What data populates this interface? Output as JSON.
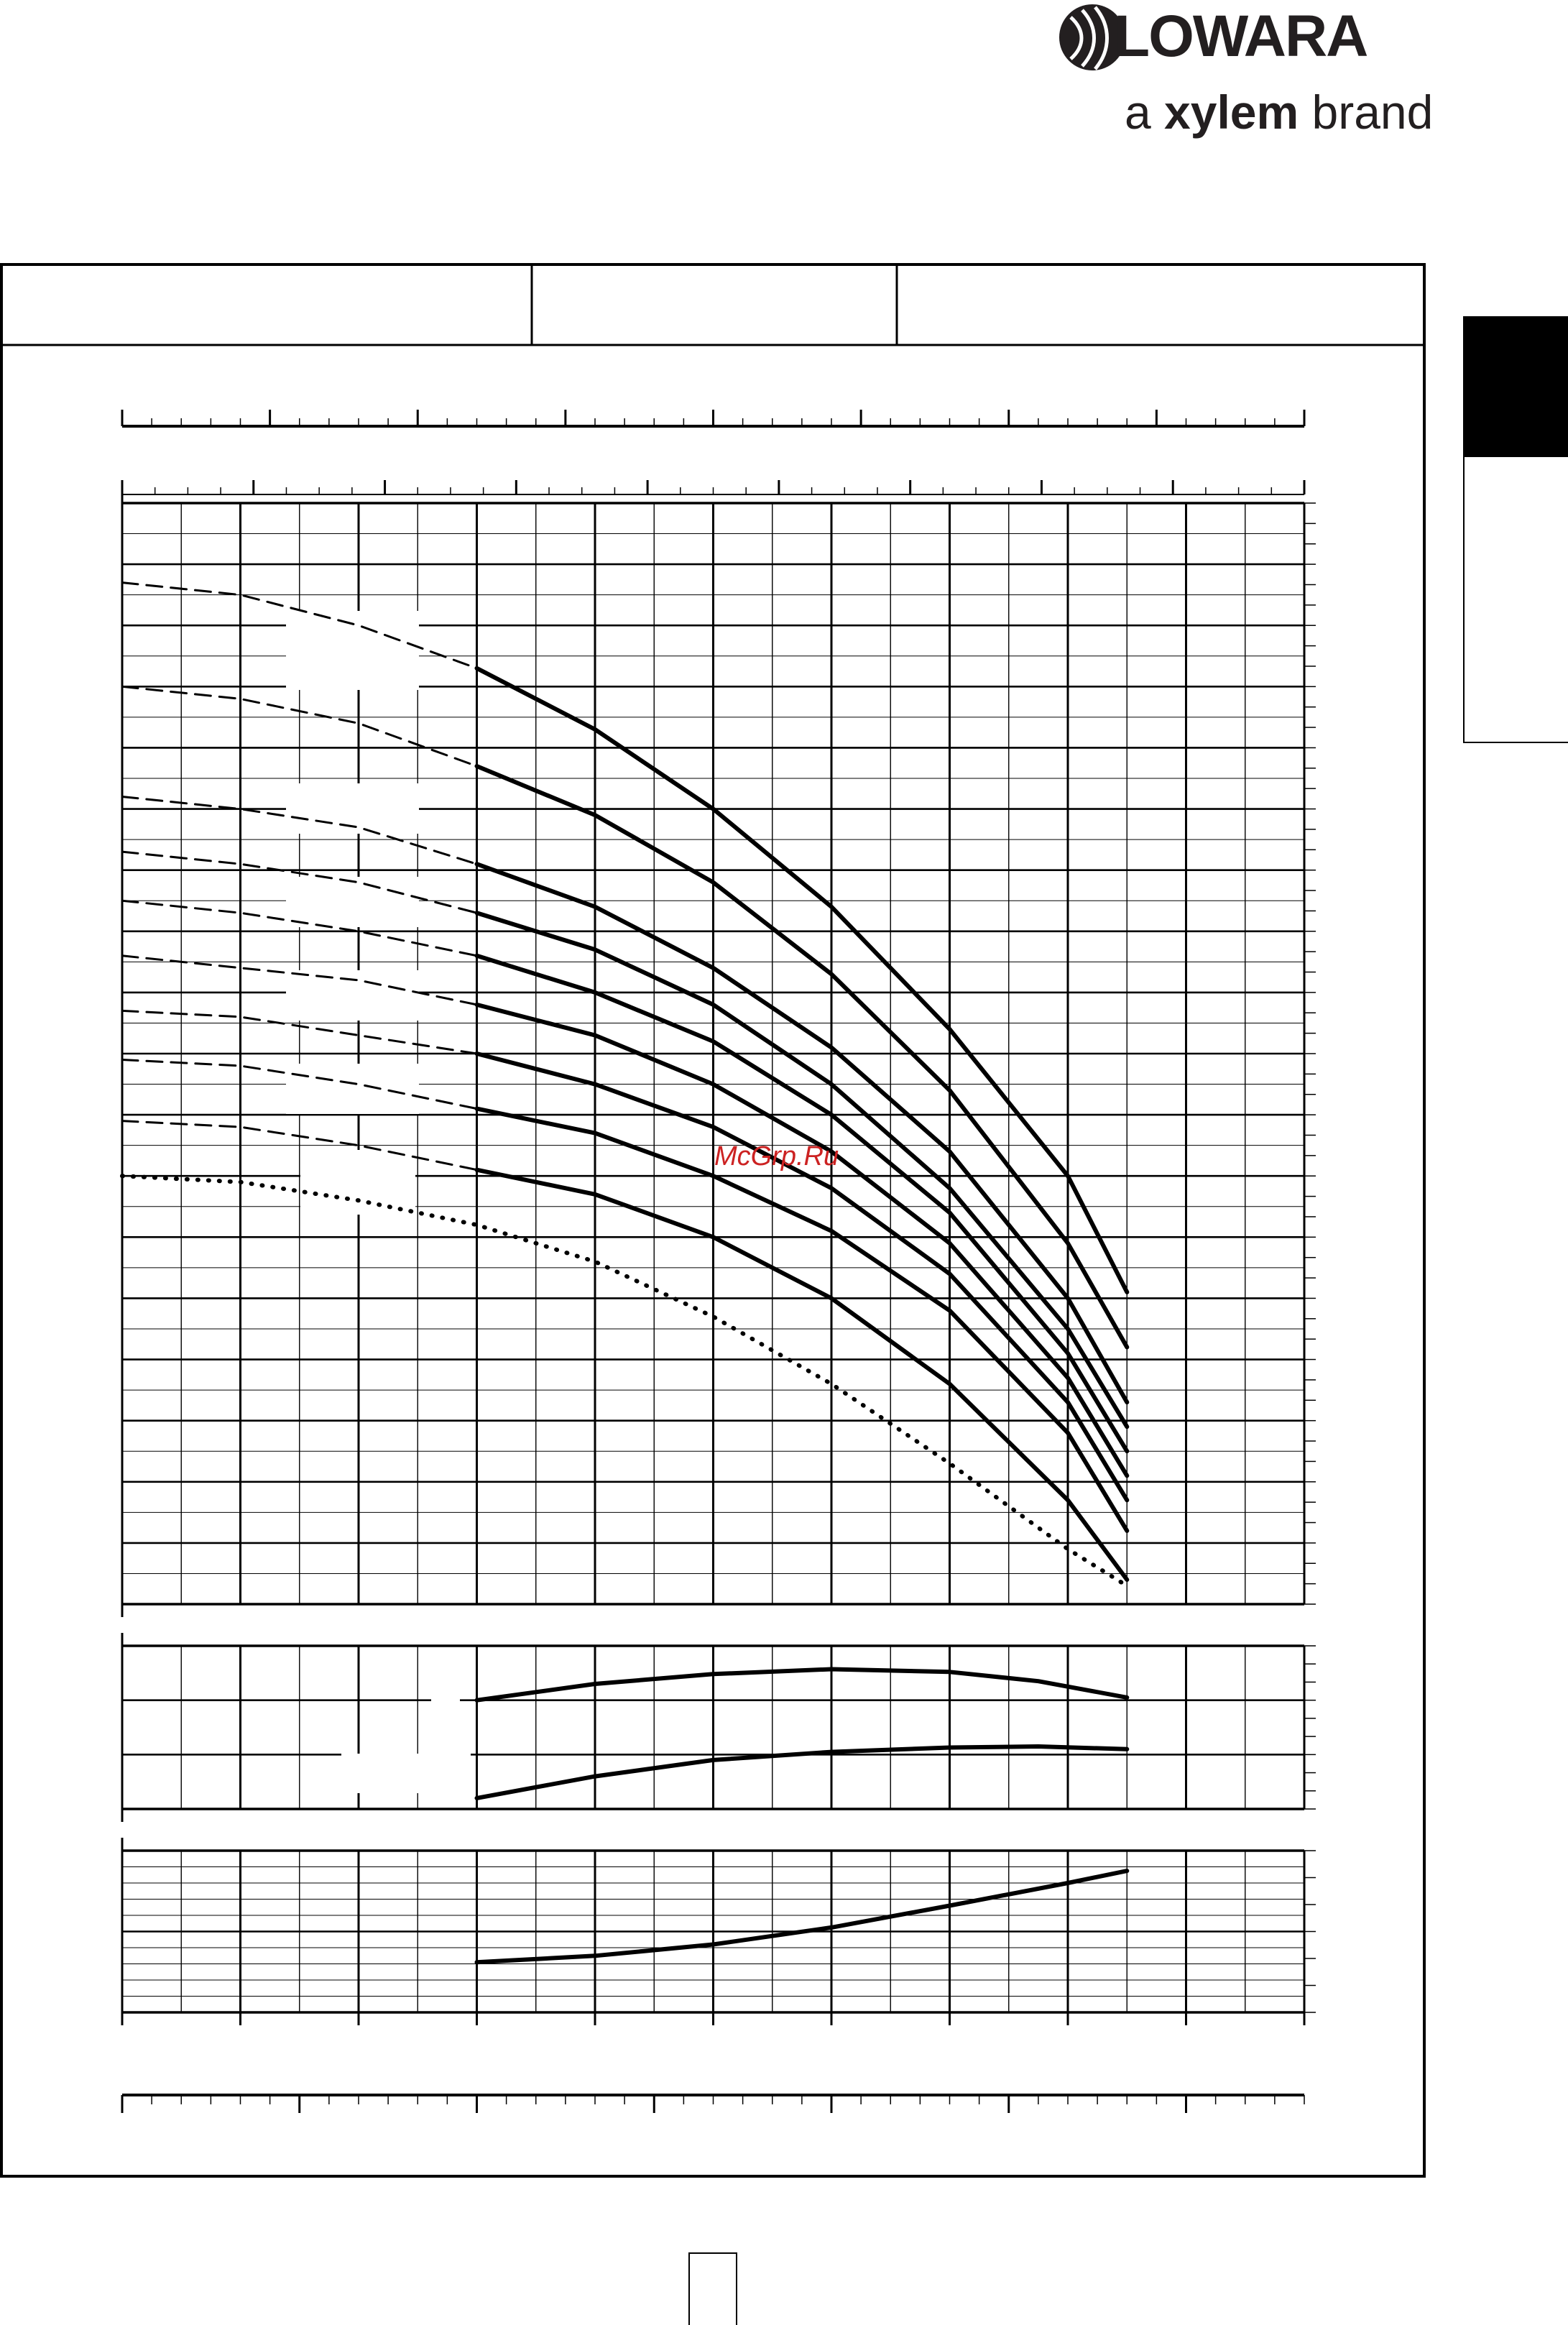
{
  "brand": {
    "name": "LOWARA",
    "tagline_prefix": "a ",
    "tagline_brand": "xylem",
    "tagline_suffix": " brand"
  },
  "watermark": "McGrp.Ru",
  "colors": {
    "ink": "#000000",
    "logo": "#231f20",
    "watermark": "#cc2222"
  },
  "chart_data": [
    {
      "type": "line",
      "name": "head",
      "title": "",
      "xlabel": "",
      "ylabel": "",
      "xlim": [
        0,
        20
      ],
      "ylim": [
        0,
        18
      ],
      "grid": true,
      "series": [
        {
          "name": "",
          "style": "solid",
          "x": [
            6,
            8,
            10,
            12,
            14,
            16,
            17
          ],
          "y": [
            15.3,
            14.3,
            13.0,
            11.4,
            9.4,
            7.0,
            5.1
          ]
        },
        {
          "name": "",
          "style": "dashed",
          "x": [
            0,
            2,
            4,
            6
          ],
          "y": [
            16.7,
            16.5,
            16.0,
            15.3
          ]
        },
        {
          "name": "",
          "style": "solid",
          "x": [
            6,
            8,
            10,
            12,
            14,
            16,
            17
          ],
          "y": [
            13.7,
            12.9,
            11.8,
            10.3,
            8.4,
            5.9,
            4.2
          ]
        },
        {
          "name": "",
          "style": "dashed",
          "x": [
            0,
            2,
            4,
            6
          ],
          "y": [
            15.0,
            14.8,
            14.4,
            13.7
          ]
        },
        {
          "name": "",
          "style": "solid",
          "x": [
            6,
            8,
            10,
            12,
            14,
            16,
            17
          ],
          "y": [
            12.1,
            11.4,
            10.4,
            9.1,
            7.4,
            5.0,
            3.3
          ]
        },
        {
          "name": "",
          "style": "dashed",
          "x": [
            0,
            2,
            4,
            6
          ],
          "y": [
            13.2,
            13.0,
            12.7,
            12.1
          ]
        },
        {
          "name": "",
          "style": "solid",
          "x": [
            6,
            8,
            10,
            12,
            14,
            16,
            17
          ],
          "y": [
            11.3,
            10.7,
            9.8,
            8.5,
            6.8,
            4.5,
            2.9
          ]
        },
        {
          "name": "",
          "style": "dashed",
          "x": [
            0,
            2,
            4,
            6
          ],
          "y": [
            12.3,
            12.1,
            11.8,
            11.3
          ]
        },
        {
          "name": "",
          "style": "solid",
          "x": [
            6,
            8,
            10,
            12,
            14,
            16,
            17
          ],
          "y": [
            10.6,
            10.0,
            9.2,
            8.0,
            6.4,
            4.1,
            2.5
          ]
        },
        {
          "name": "",
          "style": "dashed",
          "x": [
            0,
            2,
            4,
            6
          ],
          "y": [
            11.5,
            11.3,
            11.0,
            10.6
          ]
        },
        {
          "name": "",
          "style": "solid",
          "x": [
            6,
            8,
            10,
            12,
            14,
            16,
            17
          ],
          "y": [
            9.8,
            9.3,
            8.5,
            7.4,
            5.9,
            3.7,
            2.1
          ]
        },
        {
          "name": "",
          "style": "dashed",
          "x": [
            0,
            2,
            4,
            6
          ],
          "y": [
            10.6,
            10.4,
            10.2,
            9.8
          ]
        },
        {
          "name": "",
          "style": "solid",
          "x": [
            6,
            8,
            10,
            12,
            14,
            16,
            17
          ],
          "y": [
            9.0,
            8.5,
            7.8,
            6.8,
            5.4,
            3.3,
            1.7
          ]
        },
        {
          "name": "",
          "style": "dashed",
          "x": [
            0,
            2,
            4,
            6
          ],
          "y": [
            9.7,
            9.6,
            9.3,
            9.0
          ]
        },
        {
          "name": "",
          "style": "solid",
          "x": [
            6,
            8,
            10,
            12,
            14,
            16,
            17
          ],
          "y": [
            8.1,
            7.7,
            7.0,
            6.1,
            4.8,
            2.8,
            1.2
          ]
        },
        {
          "name": "",
          "style": "dashed",
          "x": [
            0,
            2,
            4,
            6
          ],
          "y": [
            8.9,
            8.8,
            8.5,
            8.1
          ]
        },
        {
          "name": "",
          "style": "solid",
          "x": [
            6,
            8,
            10,
            12,
            14,
            16,
            17
          ],
          "y": [
            7.1,
            6.7,
            6.0,
            5.0,
            3.6,
            1.7,
            0.4
          ]
        },
        {
          "name": "",
          "style": "dashed",
          "x": [
            0,
            2,
            4,
            6
          ],
          "y": [
            7.9,
            7.8,
            7.5,
            7.1
          ]
        },
        {
          "name": "",
          "style": "dotted",
          "x": [
            0,
            2,
            4,
            6,
            8,
            10,
            12,
            14,
            16,
            17
          ],
          "y": [
            7.0,
            6.9,
            6.6,
            6.2,
            5.6,
            4.7,
            3.6,
            2.3,
            0.9,
            0.3
          ]
        }
      ]
    },
    {
      "type": "line",
      "name": "upper-lower-band",
      "xlim": [
        0,
        20
      ],
      "ylim": [
        0,
        3
      ],
      "grid": true,
      "series": [
        {
          "name": "",
          "style": "solid",
          "x": [
            6,
            8,
            10,
            12,
            14,
            15.5,
            17
          ],
          "y": [
            2.0,
            2.3,
            2.48,
            2.57,
            2.52,
            2.35,
            2.05
          ]
        },
        {
          "name": "",
          "style": "solid",
          "x": [
            6,
            8,
            10,
            12,
            14,
            15.5,
            17
          ],
          "y": [
            0.2,
            0.6,
            0.9,
            1.05,
            1.13,
            1.15,
            1.1
          ]
        }
      ]
    },
    {
      "type": "line",
      "name": "bottom-band",
      "xlim": [
        0,
        20
      ],
      "ylim": [
        0,
        2
      ],
      "grid": true,
      "series": [
        {
          "name": "",
          "style": "solid",
          "x": [
            6,
            8,
            10,
            12,
            14,
            16,
            17
          ],
          "y": [
            0.62,
            0.7,
            0.84,
            1.05,
            1.32,
            1.6,
            1.75
          ]
        }
      ]
    }
  ]
}
